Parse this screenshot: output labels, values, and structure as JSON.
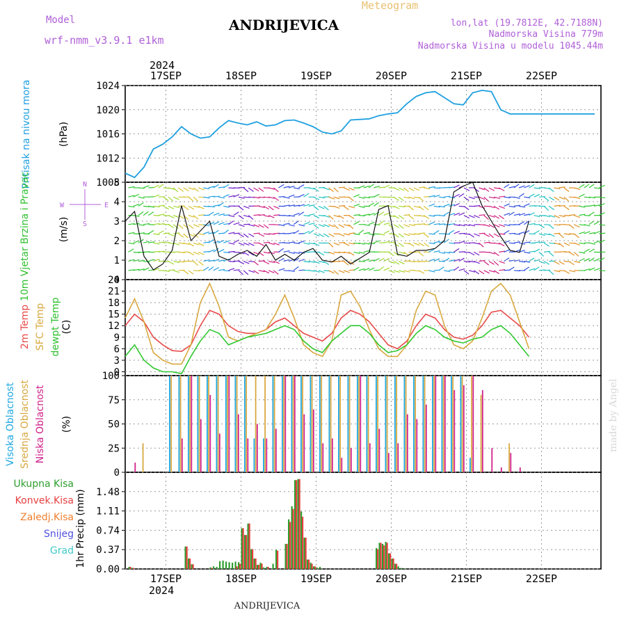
{
  "header": {
    "model_label": "Model",
    "model_name": "wrf-nmm_v3.9.1 e1km",
    "station": "ANDRIJEVICA",
    "product": "Meteogram",
    "lonlat": "lon,lat (19.7812E, 42.7188N)",
    "elev": "Nadmorska Visina 779m",
    "elev_model": "Nadmorska Visina u modelu 1045.44m",
    "footer_station": "ANDRIJEVICA",
    "watermark": "made by Angel"
  },
  "colors": {
    "pressure": "#1fa0e0",
    "t2m": "#e84a4a",
    "sfc": "#d8a840",
    "dew": "#30c830",
    "high_cloud": "#20a8e0",
    "mid_cloud": "#d8a840",
    "low_cloud": "#d0208a",
    "precip_total": "#2e9e2e",
    "precip_conv": "#e84040",
    "precip_froz": "#f08030",
    "snow": "#5050e0",
    "grad": "#40c8c8",
    "title_purple": "#b060d8"
  },
  "time_axis": {
    "year": "2024",
    "days": [
      "17SEP",
      "18SEP",
      "19SEP",
      "20SEP",
      "21SEP",
      "22SEP"
    ]
  },
  "chart_data": [
    {
      "type": "line",
      "name": "pressure",
      "ylabel": "Pritisak na nivou mora",
      "unit": "(hPa)",
      "ylim": [
        1008,
        1024
      ],
      "yticks": [
        1008,
        1012,
        1016,
        1020,
        1024
      ],
      "x_hours": [
        0,
        3,
        6,
        9,
        12,
        15,
        18,
        21,
        24,
        27,
        30,
        33,
        36,
        39,
        42,
        45,
        48,
        51,
        54,
        57,
        60,
        63,
        66,
        69,
        72,
        75,
        78,
        81,
        84,
        87,
        90,
        93,
        96,
        99,
        102,
        105,
        108,
        111,
        114,
        117,
        120,
        123,
        126,
        129,
        132,
        135,
        138,
        141,
        144,
        147,
        150
      ],
      "y": [
        1009.5,
        1008.8,
        1010.5,
        1013.5,
        1014.3,
        1015.5,
        1017.2,
        1016.0,
        1015.3,
        1015.5,
        1017.0,
        1018.2,
        1017.8,
        1017.5,
        1018.0,
        1017.3,
        1017.5,
        1018.2,
        1018.3,
        1017.8,
        1017.2,
        1016.3,
        1016.0,
        1016.5,
        1018.3,
        1018.4,
        1018.5,
        1019.0,
        1019.3,
        1019.5,
        1021.0,
        1022.2,
        1022.8,
        1023.0,
        1022.0,
        1021.0,
        1020.8,
        1022.8,
        1023.2,
        1023.0,
        1020.0,
        1019.3,
        1019.3,
        1019.3,
        1019.3,
        1019.3,
        1019.3,
        1019.3,
        1019.3,
        1019.3,
        1019.3
      ]
    },
    {
      "type": "line",
      "name": "wind",
      "ylabel": "10m Vjetar Brzina i Pravac",
      "unit": "(m/s)",
      "compass": [
        "N",
        "E",
        "S",
        "W"
      ],
      "ylim": [
        0,
        5
      ],
      "yticks": [
        0,
        1,
        2,
        3,
        4,
        5
      ],
      "x_hours": [
        0,
        3,
        6,
        9,
        12,
        15,
        18,
        21,
        24,
        27,
        30,
        33,
        36,
        39,
        42,
        45,
        48,
        51,
        54,
        57,
        60,
        63,
        66,
        69,
        72,
        75,
        78,
        81,
        84,
        87,
        90,
        93,
        96,
        99,
        102,
        105,
        108,
        111,
        114,
        117,
        120,
        123,
        126,
        129
      ],
      "y": [
        3.0,
        3.5,
        1.2,
        0.5,
        0.8,
        1.5,
        3.8,
        2.0,
        2.5,
        3.0,
        1.2,
        1.0,
        1.3,
        1.5,
        1.2,
        1.8,
        1.0,
        1.3,
        1.0,
        1.4,
        1.6,
        1.0,
        0.9,
        1.2,
        0.8,
        1.1,
        1.4,
        3.6,
        3.8,
        1.3,
        1.2,
        1.5,
        1.5,
        1.6,
        2.0,
        4.5,
        4.8,
        5.0,
        3.8,
        3.0,
        2.2,
        1.5,
        1.4,
        3.0
      ]
    },
    {
      "type": "line",
      "name": "temperature",
      "ylabel": "2m Temp / SFC Temp / dewpt Temp",
      "unit": "(C)",
      "ylim": [
        -1,
        24
      ],
      "yticks": [
        0,
        3,
        6,
        9,
        12,
        15,
        18,
        21,
        24
      ],
      "x_hours": [
        0,
        3,
        6,
        9,
        12,
        15,
        18,
        21,
        24,
        27,
        30,
        33,
        36,
        39,
        42,
        45,
        48,
        51,
        54,
        57,
        60,
        63,
        66,
        69,
        72,
        75,
        78,
        81,
        84,
        87,
        90,
        93,
        96,
        99,
        102,
        105,
        108,
        111,
        114,
        117,
        120,
        123,
        126,
        129
      ],
      "series": [
        {
          "name": "2m Temp",
          "values": [
            12,
            15,
            13,
            9,
            7,
            5.5,
            5.3,
            7,
            12,
            16,
            15,
            12,
            10.5,
            10,
            10,
            11,
            13,
            14,
            12,
            10,
            9,
            8,
            10,
            14,
            16,
            15,
            13,
            10,
            7,
            6,
            8,
            12,
            15,
            14,
            11,
            9,
            8.5,
            9.5,
            12,
            15.5,
            16,
            14,
            12,
            9
          ]
        },
        {
          "name": "SFC Temp",
          "values": [
            14,
            19,
            13,
            5,
            3,
            2,
            2,
            7,
            18,
            23,
            17,
            9,
            8,
            9,
            10,
            11,
            15,
            20,
            14,
            7,
            5,
            4,
            8,
            20,
            21,
            17,
            11,
            6,
            4,
            4,
            7,
            16,
            21,
            20,
            12,
            7,
            6,
            8,
            14,
            21,
            23,
            20,
            13,
            6
          ]
        },
        {
          "name": "dewpt Temp",
          "values": [
            4,
            7,
            3,
            1,
            0,
            0,
            -0.5,
            4,
            8,
            11,
            10,
            7,
            8,
            9,
            9.5,
            10,
            11,
            12,
            11,
            8,
            6,
            5,
            8,
            10,
            12,
            12,
            10,
            7,
            5,
            5.5,
            7,
            10,
            12,
            11,
            9,
            8,
            7.5,
            8.5,
            9,
            11,
            12,
            10,
            7,
            4
          ]
        }
      ]
    },
    {
      "type": "bar",
      "name": "cloud",
      "ylabel": "Visoka Oblacnost / Srednja Oblacnost / Niska Oblacnost",
      "unit": "(%)",
      "ylim": [
        0,
        100
      ],
      "yticks": [
        0,
        25,
        50,
        75,
        100
      ],
      "x_hours": [
        2,
        5,
        11,
        14,
        17,
        20,
        23,
        26,
        29,
        32,
        35,
        38,
        41,
        44,
        47,
        50,
        53,
        56,
        59,
        62,
        65,
        68,
        71,
        74,
        77,
        80,
        83,
        86,
        89,
        92,
        95,
        98,
        101,
        104,
        107,
        110,
        113,
        116,
        119,
        122,
        125,
        128
      ],
      "series": [
        {
          "name": "Visoka Oblacnost",
          "values": [
            0,
            0,
            0,
            100,
            100,
            100,
            100,
            100,
            100,
            100,
            100,
            100,
            35,
            35,
            100,
            100,
            100,
            100,
            100,
            100,
            100,
            100,
            100,
            100,
            100,
            100,
            100,
            100,
            100,
            100,
            100,
            100,
            100,
            100,
            100,
            15,
            0,
            0,
            0,
            0,
            0,
            0
          ]
        },
        {
          "name": "Srednja Oblacnost",
          "values": [
            0,
            30,
            0,
            100,
            100,
            100,
            100,
            100,
            100,
            100,
            100,
            100,
            100,
            100,
            100,
            100,
            100,
            100,
            100,
            100,
            100,
            100,
            100,
            100,
            100,
            100,
            100,
            100,
            100,
            100,
            100,
            100,
            100,
            100,
            100,
            100,
            80,
            0,
            0,
            30,
            0,
            0
          ]
        },
        {
          "name": "Niska Oblacnost",
          "values": [
            10,
            0,
            0,
            0,
            35,
            100,
            55,
            80,
            40,
            100,
            60,
            35,
            50,
            35,
            45,
            100,
            100,
            60,
            65,
            30,
            35,
            15,
            25,
            100,
            30,
            45,
            20,
            30,
            60,
            55,
            70,
            100,
            100,
            85,
            90,
            100,
            85,
            25,
            5,
            20,
            5,
            0
          ]
        }
      ]
    },
    {
      "type": "bar",
      "name": "precip",
      "ylabel": "1hr Precip",
      "unit": "(mm)",
      "legend": [
        "Ukupna Kisa",
        "Konvek.Kisa",
        "Zaledj.Kisa",
        "Snijeg",
        "Grad"
      ],
      "ylim": [
        0,
        1.85
      ],
      "yticks": [
        0,
        0.37,
        0.74,
        1.11,
        1.48
      ],
      "x_hours": [
        1,
        2,
        19,
        20,
        21,
        27,
        28,
        29,
        30,
        31,
        32,
        33,
        34,
        35,
        36,
        37,
        38,
        39,
        40,
        41,
        42,
        43,
        44,
        45,
        47,
        48,
        51,
        52,
        53,
        54,
        55,
        56,
        57,
        58,
        59,
        60,
        61,
        62,
        80,
        81,
        82,
        83,
        84,
        85,
        86,
        87,
        88,
        89
      ],
      "series": [
        {
          "name": "Ukupna Kisa",
          "values": [
            0.04,
            0.02,
            0.43,
            0.2,
            0.09,
            0.03,
            0.05,
            0.04,
            0.15,
            0.16,
            0.14,
            0.13,
            0.12,
            0.14,
            0.13,
            0.78,
            0.65,
            0.87,
            0.38,
            0.2,
            0.08,
            0.12,
            0.03,
            0.04,
            0.1,
            0.37,
            0.48,
            0.95,
            1.2,
            1.7,
            1.72,
            1.1,
            0.6,
            0.18,
            0.12,
            0.05,
            0.03,
            0.04,
            0.4,
            0.5,
            0.48,
            0.52,
            0.3,
            0.2,
            0.1,
            0.05,
            0.02,
            0.01
          ]
        },
        {
          "name": "Konvek.Kisa",
          "values": [
            0.04,
            0.02,
            0.43,
            0.2,
            0.09,
            0.02,
            0.0,
            0.0,
            0.0,
            0.0,
            0.0,
            0.0,
            0.0,
            0.05,
            0.1,
            0.78,
            0.65,
            0.87,
            0.38,
            0.2,
            0.08,
            0.1,
            0.0,
            0.04,
            0.0,
            0.35,
            0.48,
            0.9,
            1.15,
            1.7,
            1.72,
            1.0,
            0.6,
            0.18,
            0.1,
            0.05,
            0.0,
            0.0,
            0.38,
            0.5,
            0.45,
            0.5,
            0.3,
            0.2,
            0.1,
            0.0,
            0.0,
            0.0
          ]
        }
      ]
    }
  ]
}
